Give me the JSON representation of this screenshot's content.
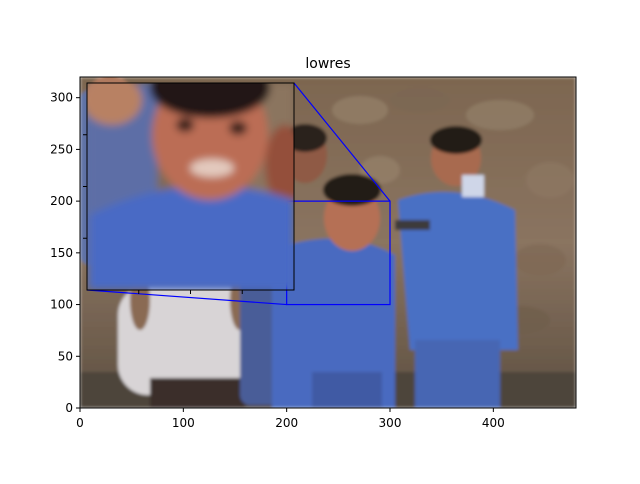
{
  "chart_data": {
    "type": "image",
    "title": "lowres",
    "xlabel": "",
    "ylabel": "",
    "xlim": [
      0,
      480
    ],
    "ylim": [
      0,
      320
    ],
    "xticks": [
      0,
      100,
      200,
      300,
      400
    ],
    "yticks": [
      0,
      50,
      100,
      150,
      200,
      250,
      300
    ],
    "zoom_region": {
      "x": [
        200,
        300
      ],
      "y": [
        100,
        200
      ]
    },
    "inset_border_color": "#0000ff"
  }
}
